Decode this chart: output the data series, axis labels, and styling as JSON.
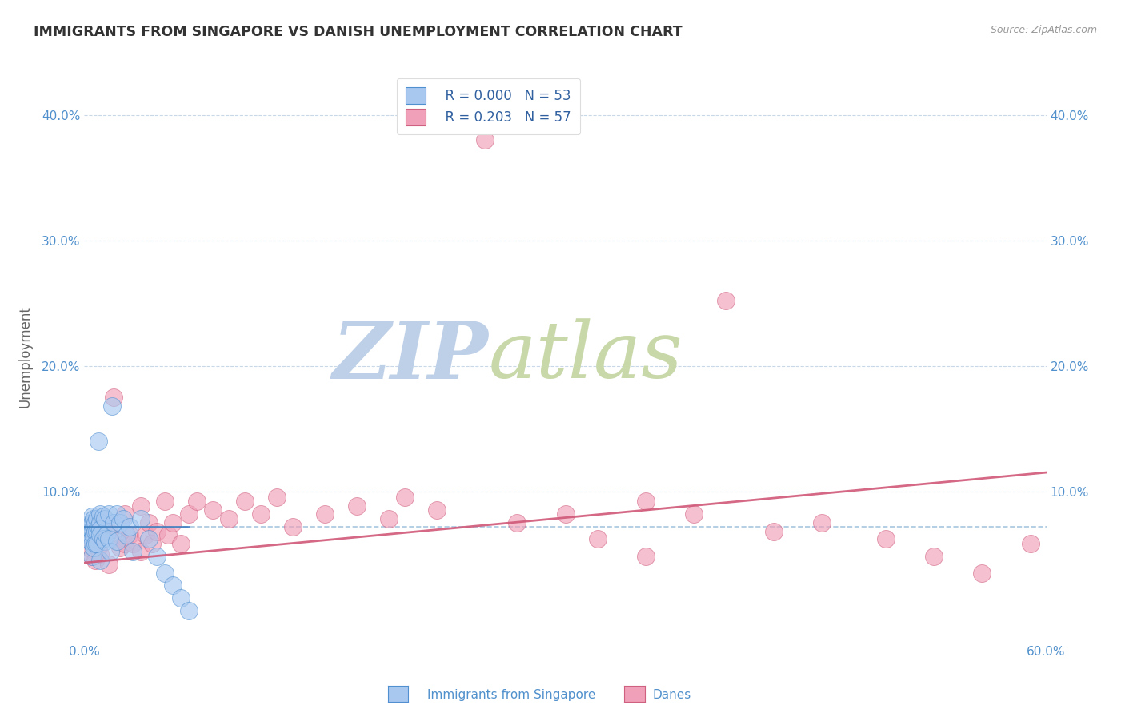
{
  "title": "IMMIGRANTS FROM SINGAPORE VS DANISH UNEMPLOYMENT CORRELATION CHART",
  "source": "Source: ZipAtlas.com",
  "ylabel": "Unemployment",
  "xlim": [
    0.0,
    0.6
  ],
  "ylim": [
    -0.02,
    0.435
  ],
  "ytick_vals": [
    0.0,
    0.1,
    0.2,
    0.3,
    0.4
  ],
  "ytick_labels_left": [
    "",
    "10.0%",
    "20.0%",
    "30.0%",
    "40.0%"
  ],
  "ytick_labels_right": [
    "",
    "10.0%",
    "20.0%",
    "30.0%",
    "40.0%"
  ],
  "xtick_vals": [
    0.0,
    0.1,
    0.2,
    0.3,
    0.4,
    0.5,
    0.6
  ],
  "xtick_labels": [
    "0.0%",
    "",
    "",
    "",
    "",
    "",
    "60.0%"
  ],
  "legend_r1": "R = 0.000",
  "legend_n1": "N = 53",
  "legend_r2": "R = 0.203",
  "legend_n2": "N = 57",
  "blue_color": "#A8C8F0",
  "pink_color": "#F0A0B8",
  "blue_edge_color": "#5090D0",
  "pink_edge_color": "#D06080",
  "blue_line_color": "#4080C0",
  "pink_line_color": "#D05878",
  "dashed_line_color": "#90B8D8",
  "grid_line_color": "#C8D8E8",
  "background_color": "#FFFFFF",
  "watermark_zip": "ZIP",
  "watermark_atlas": "atlas",
  "watermark_color_zip": "#BDD0E8",
  "watermark_color_atlas": "#C8D8A8",
  "title_color": "#333333",
  "axis_label_color": "#666666",
  "tick_color": "#5090CC",
  "legend_label_color": "#3060A0",
  "bottom_label_color": "#5090CC",
  "blue_x": [
    0.002,
    0.003,
    0.003,
    0.004,
    0.004,
    0.004,
    0.005,
    0.005,
    0.005,
    0.005,
    0.005,
    0.005,
    0.006,
    0.006,
    0.006,
    0.006,
    0.007,
    0.007,
    0.007,
    0.008,
    0.008,
    0.008,
    0.009,
    0.009,
    0.01,
    0.01,
    0.01,
    0.01,
    0.01,
    0.012,
    0.012,
    0.013,
    0.013,
    0.014,
    0.015,
    0.015,
    0.016,
    0.017,
    0.018,
    0.02,
    0.02,
    0.022,
    0.024,
    0.026,
    0.028,
    0.03,
    0.035,
    0.04,
    0.045,
    0.05,
    0.055,
    0.06,
    0.065
  ],
  "blue_y": [
    0.07,
    0.068,
    0.065,
    0.075,
    0.072,
    0.06,
    0.08,
    0.075,
    0.068,
    0.062,
    0.058,
    0.048,
    0.078,
    0.072,
    0.065,
    0.055,
    0.075,
    0.068,
    0.058,
    0.078,
    0.068,
    0.058,
    0.14,
    0.072,
    0.082,
    0.075,
    0.07,
    0.065,
    0.045,
    0.08,
    0.062,
    0.078,
    0.06,
    0.065,
    0.082,
    0.062,
    0.052,
    0.168,
    0.075,
    0.082,
    0.06,
    0.075,
    0.078,
    0.065,
    0.072,
    0.052,
    0.078,
    0.062,
    0.048,
    0.035,
    0.025,
    0.015,
    0.005
  ],
  "pink_x": [
    0.002,
    0.003,
    0.004,
    0.005,
    0.005,
    0.006,
    0.007,
    0.008,
    0.009,
    0.01,
    0.012,
    0.015,
    0.015,
    0.018,
    0.02,
    0.022,
    0.025,
    0.025,
    0.028,
    0.03,
    0.035,
    0.035,
    0.038,
    0.04,
    0.042,
    0.045,
    0.05,
    0.052,
    0.055,
    0.06,
    0.065,
    0.07,
    0.08,
    0.09,
    0.1,
    0.11,
    0.12,
    0.13,
    0.15,
    0.17,
    0.19,
    0.2,
    0.22,
    0.25,
    0.27,
    0.3,
    0.32,
    0.35,
    0.38,
    0.4,
    0.43,
    0.46,
    0.5,
    0.53,
    0.56,
    0.59,
    0.35
  ],
  "pink_y": [
    0.065,
    0.055,
    0.06,
    0.07,
    0.048,
    0.058,
    0.045,
    0.062,
    0.055,
    0.05,
    0.072,
    0.068,
    0.042,
    0.175,
    0.062,
    0.055,
    0.082,
    0.058,
    0.065,
    0.058,
    0.088,
    0.052,
    0.065,
    0.075,
    0.058,
    0.068,
    0.092,
    0.065,
    0.075,
    0.058,
    0.082,
    0.092,
    0.085,
    0.078,
    0.092,
    0.082,
    0.095,
    0.072,
    0.082,
    0.088,
    0.078,
    0.095,
    0.085,
    0.38,
    0.075,
    0.082,
    0.062,
    0.092,
    0.082,
    0.252,
    0.068,
    0.075,
    0.062,
    0.048,
    0.035,
    0.058,
    0.048
  ],
  "blue_trend_x0": 0.0,
  "blue_trend_x1": 0.065,
  "blue_trend_y0": 0.072,
  "blue_trend_y1": 0.072,
  "pink_trend_x0": 0.0,
  "pink_trend_x1": 0.6,
  "pink_trend_y0": 0.043,
  "pink_trend_y1": 0.115,
  "hline_y": 0.072
}
